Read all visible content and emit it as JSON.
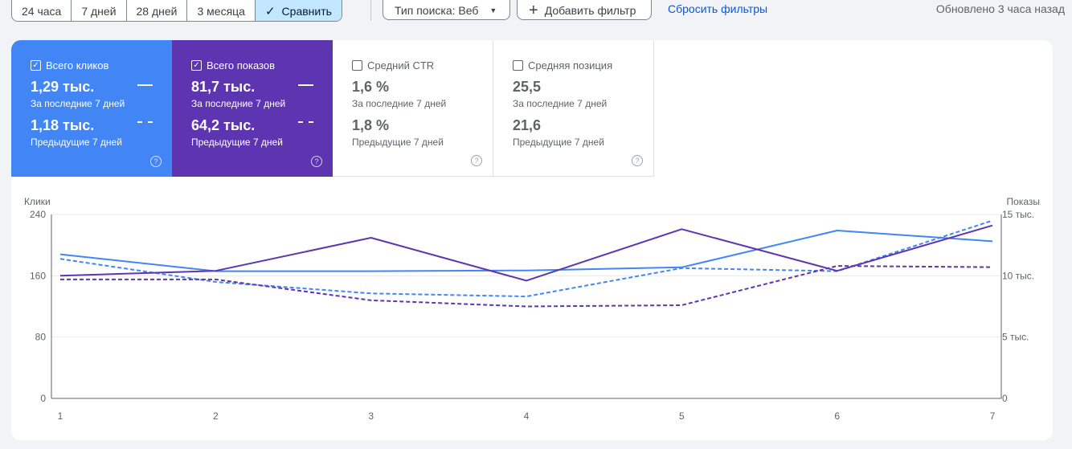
{
  "toolbar": {
    "ranges": [
      "24 часа",
      "7 дней",
      "28 дней",
      "3 месяца",
      "Сравнить"
    ],
    "search_type": "Тип поиска: Веб",
    "add_filter": "Добавить фильтр",
    "reset_filters": "Сбросить фильтры",
    "updated": "Обновлено 3 часа назад"
  },
  "metrics": [
    {
      "label": "Всего кликов",
      "current": "1,29 тыс.",
      "current_period": "За последние 7 дней",
      "previous": "1,18 тыс.",
      "previous_period": "Предыдущие 7 дней",
      "checked": true,
      "color": "#4285f4"
    },
    {
      "label": "Всего показов",
      "current": "81,7 тыс.",
      "current_period": "За последние 7 дней",
      "previous": "64,2 тыс.",
      "previous_period": "Предыдущие 7 дней",
      "checked": true,
      "color": "#5e35b1"
    },
    {
      "label": "Средний CTR",
      "current": "1,6 %",
      "current_period": "За последние 7 дней",
      "previous": "1,8 %",
      "previous_period": "Предыдущие 7 дней",
      "checked": false
    },
    {
      "label": "Средняя позиция",
      "current": "25,5",
      "current_period": "За последние 7 дней",
      "previous": "21,6",
      "previous_period": "Предыдущие 7 дней",
      "checked": false
    }
  ],
  "chart_data": {
    "type": "line",
    "x": [
      1,
      2,
      3,
      4,
      5,
      6,
      7
    ],
    "left_axis": {
      "label": "Клики",
      "ticks": [
        "0",
        "80",
        "160",
        "240"
      ],
      "range": [
        0,
        240
      ]
    },
    "right_axis": {
      "label": "Показы",
      "ticks": [
        "0",
        "5 тыс.",
        "10 тыс.",
        "15 тыс."
      ],
      "range": [
        0,
        15000
      ]
    },
    "series": [
      {
        "metric": "clicks",
        "period": "current",
        "axis": "left",
        "style": "solid",
        "color": "#4285f4",
        "values": [
          188,
          166,
          166,
          167,
          171,
          219,
          205
        ]
      },
      {
        "metric": "clicks",
        "period": "previous",
        "axis": "left",
        "style": "dashed",
        "color": "#4285f4",
        "values": [
          182,
          152,
          137,
          133,
          170,
          166,
          232
        ]
      },
      {
        "metric": "impressions",
        "period": "current",
        "axis": "right",
        "style": "solid",
        "color": "#5e35b1",
        "values": [
          10000,
          10400,
          13100,
          9600,
          13800,
          10400,
          14100
        ]
      },
      {
        "metric": "impressions",
        "period": "previous",
        "axis": "right",
        "style": "dashed",
        "color": "#5e35b1",
        "values": [
          9700,
          9700,
          8000,
          7500,
          7600,
          10800,
          10700
        ]
      }
    ],
    "grid": true
  }
}
